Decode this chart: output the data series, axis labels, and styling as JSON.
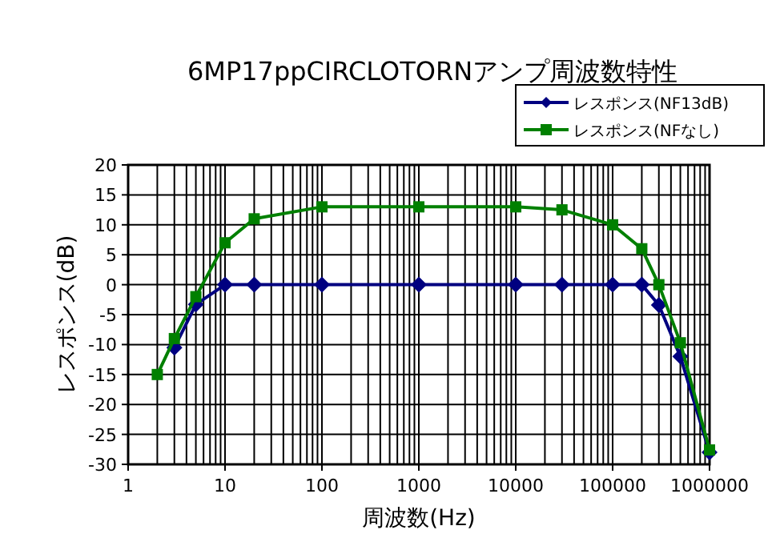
{
  "chart_data": {
    "type": "line",
    "title": "6MP17ppCIRCLOTORNアンプ周波数特性",
    "xlabel": "周波数(Hz)",
    "ylabel": "レスポンス(dB)",
    "log": "x",
    "grid": true,
    "legend": "top right",
    "xlim": [
      1,
      1000000
    ],
    "xticks": [
      1,
      10,
      100,
      1000,
      10000,
      100000,
      1000000
    ],
    "ylim": [
      -30,
      20
    ],
    "yticks": [
      -30,
      -25,
      -20,
      -15,
      -10,
      -5,
      0,
      5,
      10,
      15,
      20
    ],
    "x": [
      2,
      3,
      5,
      10,
      20,
      100,
      1000,
      10000,
      30000,
      100000,
      200000,
      300000,
      500000,
      1000000
    ],
    "series": [
      {
        "name": "レスポンス(NF13dB)",
        "color": "#000080",
        "marker": "diamond",
        "values": [
          null,
          -10.5,
          -3.3,
          0,
          0,
          0,
          0,
          0,
          0,
          0,
          0,
          -3.4,
          -12,
          -28
        ]
      },
      {
        "name": "レスポンス(NFなし)",
        "color": "#008000",
        "marker": "square",
        "values": [
          -15,
          -9,
          -2,
          7,
          11,
          13,
          13,
          13,
          12.5,
          10,
          6,
          0,
          -9.7,
          -27.6
        ]
      }
    ]
  }
}
